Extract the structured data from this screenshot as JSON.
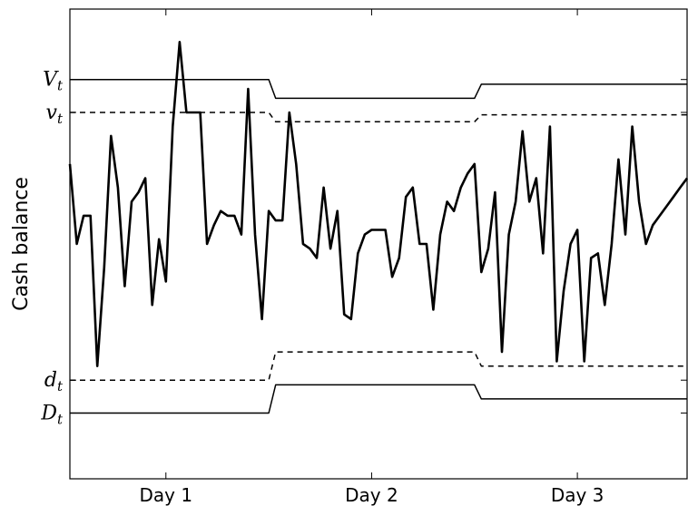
{
  "chart_data": {
    "type": "line",
    "title": "",
    "xlabel": "",
    "ylabel": "Cash balance",
    "xlim": [
      0,
      90
    ],
    "ylim": [
      0,
      100
    ],
    "grid": false,
    "x_ticks": [
      {
        "value": 14,
        "label": "Day 1"
      },
      {
        "value": 44,
        "label": "Day 2"
      },
      {
        "value": 74,
        "label": "Day 3"
      }
    ],
    "level_labels": [
      {
        "key": "V_upper",
        "base": "V",
        "sub": "t",
        "y_value": 85
      },
      {
        "key": "v_upper",
        "base": "v",
        "sub": "t",
        "y_value": 78
      },
      {
        "key": "d_lower",
        "base": "d",
        "sub": "t",
        "y_value": 21
      },
      {
        "key": "D_lower",
        "base": "D",
        "sub": "t",
        "y_value": 14
      }
    ],
    "series": [
      {
        "key": "balance",
        "style": "solid-bold",
        "x": [
          0,
          1,
          2,
          3,
          4,
          5,
          6,
          7,
          8,
          9,
          10,
          11,
          12,
          13,
          14,
          15,
          16,
          17,
          18,
          19,
          20,
          21,
          22,
          23,
          24,
          25,
          26,
          27,
          28,
          29,
          30,
          31,
          32,
          33,
          34,
          35,
          36,
          37,
          38,
          39,
          40,
          41,
          42,
          43,
          44,
          45,
          46,
          47,
          48,
          49,
          50,
          51,
          52,
          53,
          54,
          55,
          56,
          57,
          58,
          59,
          60,
          61,
          62,
          63,
          64,
          65,
          66,
          67,
          68,
          69,
          70,
          71,
          72,
          73,
          74,
          75,
          76,
          77,
          78,
          79,
          80,
          81,
          82,
          83,
          84,
          85,
          86,
          87,
          88,
          89,
          90
        ],
        "y": [
          67,
          50,
          56,
          56,
          24,
          45,
          73,
          62,
          41,
          59,
          61,
          64,
          37,
          51,
          42,
          75,
          93,
          78,
          78,
          78,
          50,
          54,
          57,
          56,
          56,
          52,
          83,
          52,
          34,
          57,
          55,
          55,
          78,
          67,
          50,
          49,
          47,
          62,
          49,
          57,
          35,
          34,
          48,
          52,
          53,
          53,
          53,
          43,
          47,
          60,
          62,
          50,
          50,
          36,
          52,
          59,
          57,
          62,
          65,
          67,
          44,
          49,
          61,
          27,
          52,
          59,
          74,
          59,
          64,
          48,
          75,
          25,
          40,
          50,
          53,
          25,
          47,
          48,
          37,
          50,
          68,
          52,
          75,
          59,
          50,
          54,
          56,
          58,
          60,
          62,
          64
        ],
        "y_comment_na": ""
      },
      {
        "key": "V_upper",
        "style": "solid",
        "x": [
          0,
          29,
          30,
          59,
          60,
          90
        ],
        "y": [
          85,
          85,
          81,
          81,
          84,
          84
        ]
      },
      {
        "key": "v_upper",
        "style": "dashed",
        "x": [
          0,
          29,
          30,
          59,
          60,
          90
        ],
        "y": [
          78,
          78,
          76,
          76,
          77.5,
          77.5
        ]
      },
      {
        "key": "d_lower",
        "style": "dashed",
        "x": [
          0,
          29,
          30,
          59,
          60,
          90
        ],
        "y": [
          21,
          21,
          27,
          27,
          24,
          24
        ]
      },
      {
        "key": "D_lower",
        "style": "solid",
        "x": [
          0,
          29,
          30,
          59,
          60,
          90
        ],
        "y": [
          14,
          14,
          20,
          20,
          17,
          17
        ]
      }
    ]
  }
}
